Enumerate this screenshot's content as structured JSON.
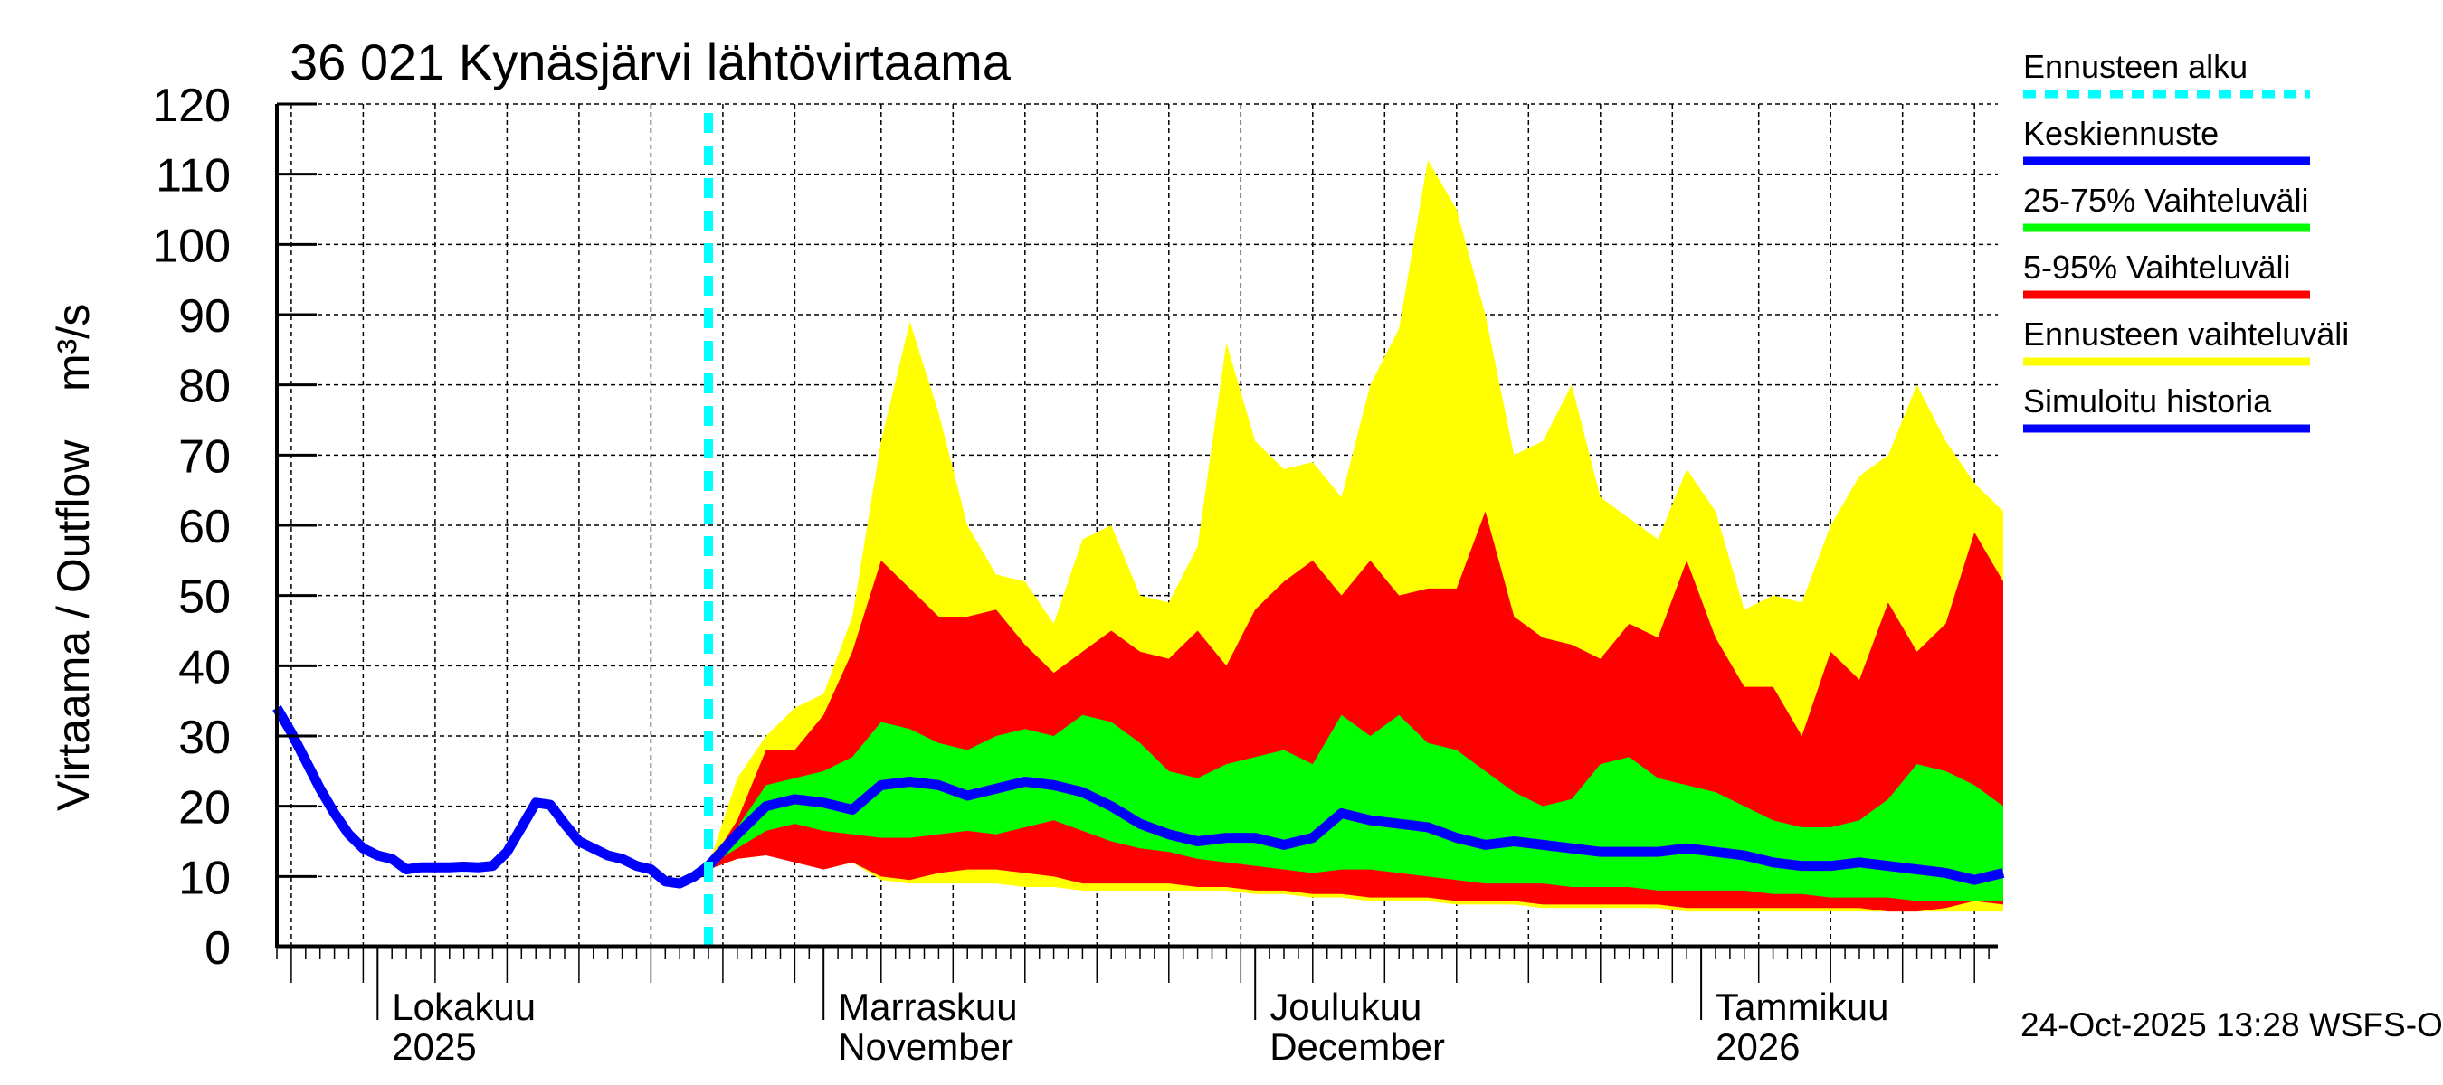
{
  "title": "36 021 Kynäsjärvi lähtövirtaama",
  "timestamp": "24-Oct-2025 13:28 WSFS-O",
  "colors": {
    "forecast_start": "#00ffff",
    "median": "#0000ff",
    "p25_75": "#00ff00",
    "p5_95": "#ff0000",
    "range": "#ffff00",
    "history": "#0000ff"
  },
  "legend": [
    {
      "label": "Ennusteen alku",
      "color": "#00ffff",
      "style": "dashed"
    },
    {
      "label": "Keskiennuste",
      "color": "#0000ff",
      "style": "solid"
    },
    {
      "label": "25-75% Vaihteluväli",
      "color": "#00ff00",
      "style": "solid"
    },
    {
      "label": "5-95% Vaihteluväli",
      "color": "#ff0000",
      "style": "solid"
    },
    {
      "label": "Ennusteen vaihteluväli",
      "color": "#ffff00",
      "style": "solid"
    },
    {
      "label": "Simuloitu historia",
      "color": "#0000ff",
      "style": "solid"
    }
  ],
  "chart_data": {
    "type": "area",
    "title": "36 021 Kynäsjärvi lähtövirtaama",
    "ylabel": "Virtaama / Outflow",
    "yunit": "m³/s",
    "ylim": [
      0,
      120
    ],
    "yticks": [
      "0",
      "10",
      "20",
      "30",
      "40",
      "50",
      "60",
      "70",
      "80",
      "90",
      "100",
      "110",
      "120"
    ],
    "xlim": [
      "2025-09-24",
      "2026-01-21"
    ],
    "grid": true,
    "legend_position": "right",
    "forecast_start": "2025-10-24",
    "month_labels": [
      {
        "date": "2025-10-01",
        "line1": "Lokakuu",
        "line2": "2025"
      },
      {
        "date": "2025-11-01",
        "line1": "Marraskuu",
        "line2": "November"
      },
      {
        "date": "2025-12-01",
        "line1": "Joulukuu",
        "line2": "December"
      },
      {
        "date": "2026-01-01",
        "line1": "Tammikuu",
        "line2": "2026"
      }
    ],
    "history": {
      "name": "Simuloitu historia",
      "start": "2025-09-24",
      "step_days": 1,
      "values": [
        34,
        30.5,
        26.5,
        22.5,
        19,
        16,
        14,
        13,
        12.5,
        11,
        11.3,
        11.3,
        11.3,
        11.4,
        11.3,
        11.5,
        13.5,
        17,
        20.5,
        20.2,
        17.5,
        15,
        14,
        13,
        12.5,
        11.5,
        11,
        9.3,
        9,
        10,
        11.5
      ]
    },
    "forecast": {
      "start": "2025-10-24",
      "step_days": 2,
      "max": [
        11.5,
        24,
        30,
        34,
        36,
        47,
        72,
        89,
        76,
        60,
        53,
        52,
        46,
        58,
        60,
        50,
        49,
        57,
        86,
        72,
        68,
        69,
        64,
        80,
        88,
        112,
        105,
        90,
        70,
        72,
        80,
        64,
        61,
        58,
        68,
        62,
        48,
        50,
        49,
        60,
        67,
        70,
        80,
        72,
        66,
        62
      ],
      "p95": [
        11.5,
        18,
        28,
        28,
        33,
        42,
        55,
        51,
        47,
        47,
        48,
        43,
        39,
        42,
        45,
        42,
        41,
        45,
        40,
        48,
        52,
        55,
        50,
        55,
        50,
        51,
        51,
        62,
        47,
        44,
        43,
        41,
        46,
        44,
        55,
        44,
        37,
        37,
        30,
        42,
        38,
        49,
        42,
        46,
        59,
        52
      ],
      "p75": [
        11.5,
        17,
        23,
        24,
        25,
        27,
        32,
        31,
        29,
        28,
        30,
        31,
        30,
        33,
        32,
        29,
        25,
        24,
        26,
        27,
        28,
        26,
        33,
        30,
        33,
        29,
        28,
        25,
        22,
        20,
        21,
        26,
        27,
        24,
        23,
        22,
        20,
        18,
        17,
        17,
        18,
        21,
        26,
        25,
        23,
        20
      ],
      "median": [
        11.5,
        16,
        20,
        21,
        20.5,
        19.5,
        23,
        23.5,
        23,
        21.5,
        22.5,
        23.5,
        23,
        22,
        20,
        17.5,
        16,
        15,
        15.5,
        15.5,
        14.5,
        15.5,
        19,
        18,
        17.5,
        17,
        15.5,
        14.5,
        15,
        14.5,
        14,
        13.5,
        13.5,
        13.5,
        14,
        13.5,
        13,
        12,
        11.5,
        11.5,
        12,
        11.5,
        11,
        10.5,
        9.5,
        10.5
      ],
      "p25": [
        11.5,
        14,
        16.5,
        17.5,
        16.5,
        16,
        15.5,
        15.5,
        16,
        16.5,
        16,
        17,
        18,
        16.5,
        15,
        14,
        13.5,
        12.5,
        12,
        11.5,
        11,
        10.5,
        11,
        11,
        10.5,
        10,
        9.5,
        9,
        9,
        9,
        8.5,
        8.5,
        8.5,
        8,
        8,
        8,
        8,
        7.5,
        7.5,
        7,
        7,
        7,
        6.5,
        6.5,
        6.5,
        6.5
      ],
      "p5": [
        11,
        12.5,
        13,
        12,
        11,
        12,
        10,
        9.5,
        10.5,
        11,
        11,
        10.5,
        10,
        9,
        9,
        9,
        9,
        8.5,
        8.5,
        8,
        8,
        7.5,
        7.5,
        7,
        7,
        7,
        6.5,
        6.5,
        6.5,
        6,
        6,
        6,
        6,
        6,
        5.5,
        5.5,
        5.5,
        5.5,
        5.5,
        5.5,
        5.5,
        5,
        5,
        5.5,
        6.5,
        6
      ],
      "min": [
        11,
        12.5,
        13,
        12.5,
        11,
        12,
        9.5,
        9,
        9,
        9,
        9,
        8.5,
        8.5,
        8,
        8,
        8,
        8,
        8,
        8,
        7.5,
        7.5,
        7,
        7,
        6.5,
        6.5,
        6.5,
        6,
        6,
        6,
        5.5,
        5.5,
        5.5,
        5.5,
        5.5,
        5,
        5,
        5,
        5,
        5,
        5,
        5,
        5,
        5,
        5,
        5,
        5
      ]
    }
  }
}
